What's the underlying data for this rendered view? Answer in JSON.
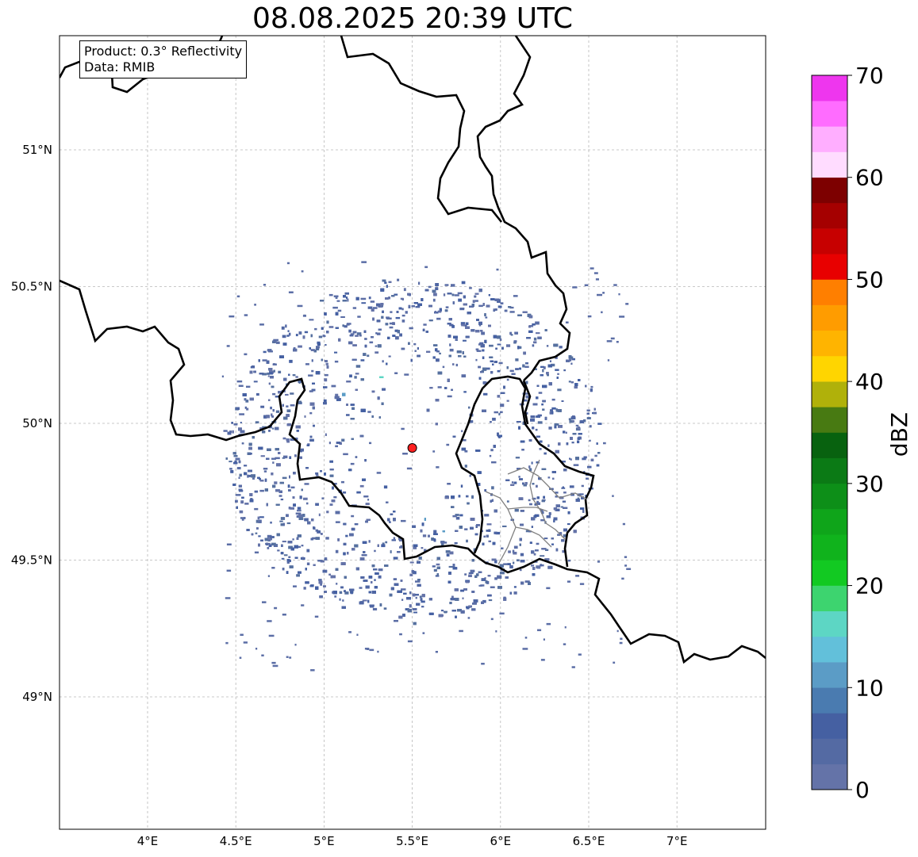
{
  "title": "08.08.2025 20:39 UTC",
  "info": {
    "product": "Product: 0.3° Reflectivity",
    "data": "Data: RMIB"
  },
  "map": {
    "lon_range": [
      3.5,
      7.5
    ],
    "lat_range": [
      48.5,
      51.45
    ],
    "lon_ticks": [
      {
        "value": 4.0,
        "label": "4°E"
      },
      {
        "value": 4.5,
        "label": "4.5°E"
      },
      {
        "value": 5.0,
        "label": "5°E"
      },
      {
        "value": 5.5,
        "label": "5.5°E"
      },
      {
        "value": 6.0,
        "label": "6°E"
      },
      {
        "value": 6.5,
        "label": "6.5°E"
      },
      {
        "value": 7.0,
        "label": "7°E"
      }
    ],
    "lat_ticks": [
      {
        "value": 49.0,
        "label": "49°N"
      },
      {
        "value": 49.5,
        "label": "49.5°N"
      },
      {
        "value": 50.0,
        "label": "50°N"
      },
      {
        "value": 50.5,
        "label": "50.5°N"
      },
      {
        "value": 51.0,
        "label": "51°N"
      }
    ],
    "grid": true,
    "radar_site": {
      "lon": 5.5,
      "lat": 49.91,
      "marker_color": "#ff2020"
    }
  },
  "colorbar": {
    "label": "dBZ",
    "range": [
      0,
      70
    ],
    "ticks": [
      {
        "value": 0,
        "label": "0"
      },
      {
        "value": 10,
        "label": "10"
      },
      {
        "value": 20,
        "label": "20"
      },
      {
        "value": 30,
        "label": "30"
      },
      {
        "value": 40,
        "label": "40"
      },
      {
        "value": 50,
        "label": "50"
      },
      {
        "value": 60,
        "label": "60"
      },
      {
        "value": 70,
        "label": "70"
      }
    ],
    "colors": [
      "#6473a8",
      "#546aa3",
      "#4560a2",
      "#4a7bb0",
      "#5b9cc6",
      "#62c0da",
      "#5dd6c4",
      "#3dd46f",
      "#12c922",
      "#10b31c",
      "#0fa51a",
      "#0d8f18",
      "#0b7a15",
      "#08620f",
      "#487a12",
      "#b0b10a",
      "#ffd500",
      "#ffb400",
      "#ff9c00",
      "#ff7f00",
      "#e80000",
      "#c70000",
      "#a50000",
      "#7d0000",
      "#ffdcff",
      "#ffaeff",
      "#ff6cff",
      "#ee36ee"
    ]
  }
}
